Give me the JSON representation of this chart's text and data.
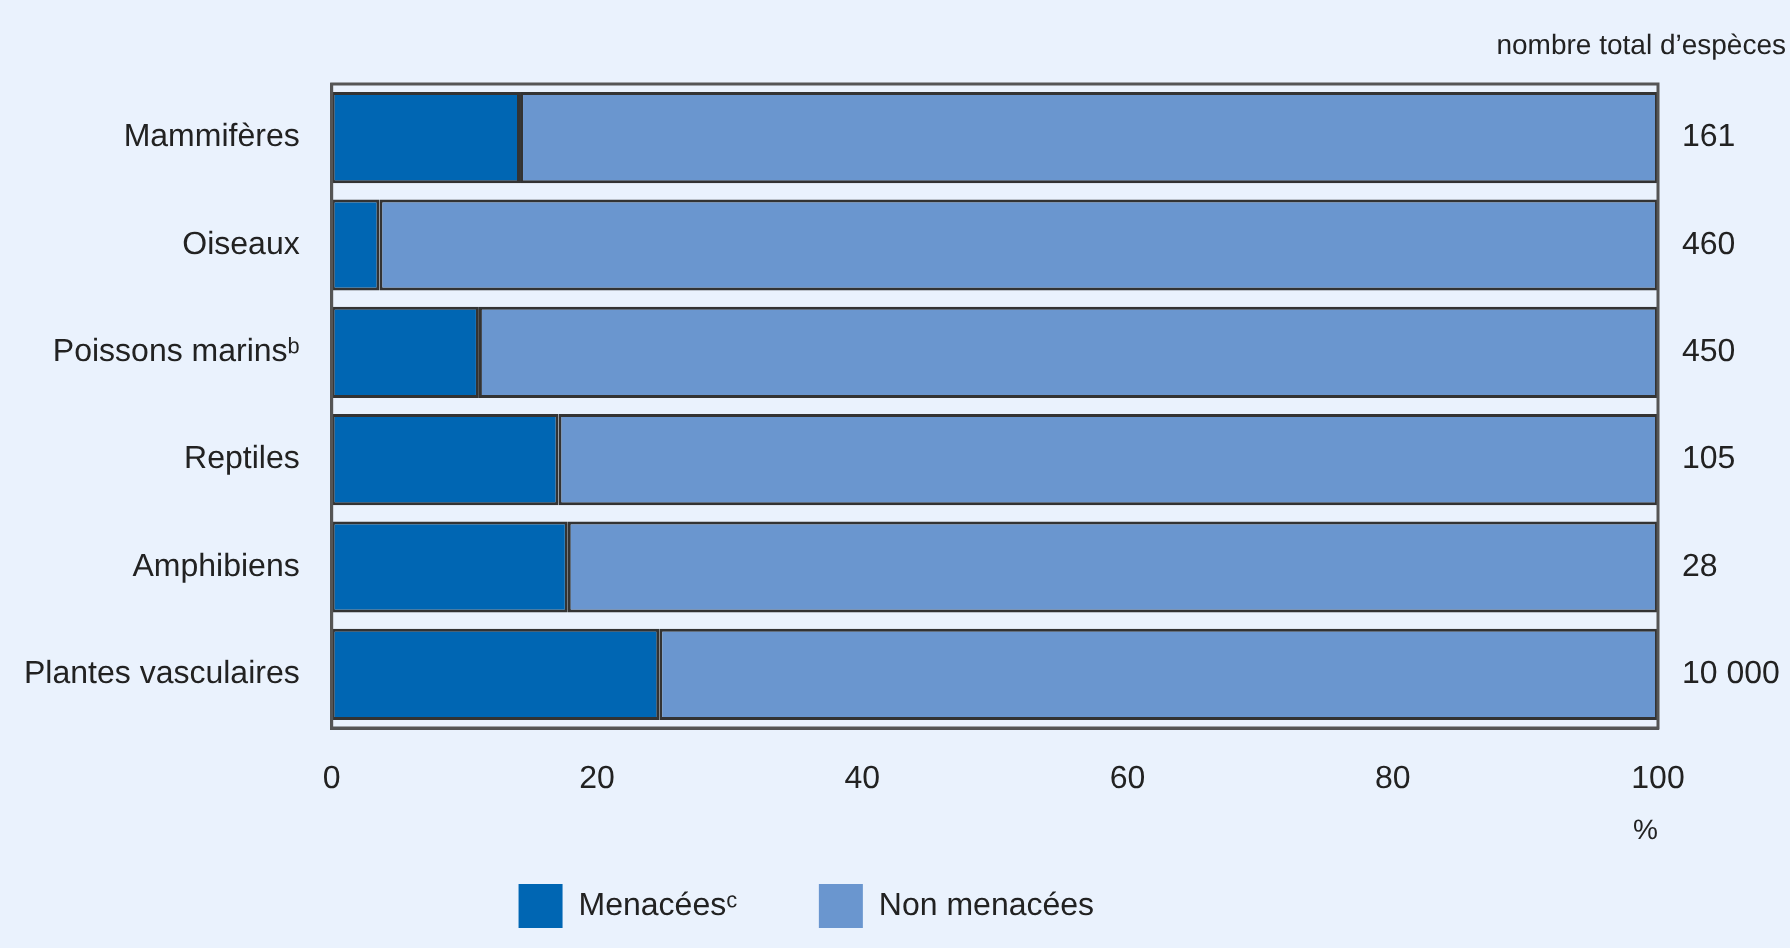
{
  "chart_data": {
    "type": "bar",
    "orientation": "horizontal",
    "stacked": true,
    "categories": [
      "Mammifères",
      "Oiseaux",
      "Poissons marinsᵇ",
      "Reptiles",
      "Amphibiens",
      "Plantes vasculaires"
    ],
    "series": [
      {
        "name": "Menacéesᶜ",
        "color": "#0066b3",
        "values": [
          14.2,
          3.6,
          11.1,
          17.1,
          17.8,
          24.7
        ]
      },
      {
        "name": "Non menacées",
        "color": "#6a96cf",
        "values": [
          85.8,
          96.4,
          88.9,
          82.9,
          82.2,
          75.3
        ]
      }
    ],
    "xlim": [
      0,
      100
    ],
    "xticks": [
      0,
      20,
      40,
      60,
      80,
      100
    ],
    "xlabel": "%",
    "grid": false,
    "legend": "bottom",
    "annotations": [
      "nombre total d’espèces",
      "161",
      "460",
      "450",
      "105",
      "28",
      "10 000"
    ]
  }
}
